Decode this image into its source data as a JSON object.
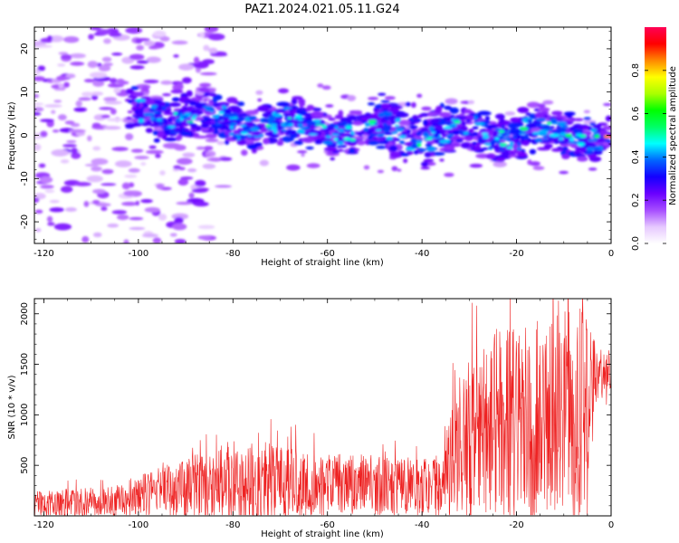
{
  "figure": {
    "title": "PAZ1.2024.021.05.11.G24"
  },
  "chart_data": [
    {
      "type": "heatmap",
      "xlabel": "Height of straight line (km)",
      "ylabel": "Frequency (Hz)",
      "xlim": [
        -122,
        0
      ],
      "ylim": [
        -25,
        25
      ],
      "xticks": [
        -120,
        -100,
        -80,
        -60,
        -40,
        -20,
        0
      ],
      "yticks": [
        -20,
        -10,
        0,
        10,
        20
      ],
      "colorbar": {
        "label": "Normalized spectral amplitude",
        "range": [
          0,
          1
        ],
        "ticks": [
          0.0,
          0.2,
          0.4,
          0.6,
          0.8
        ],
        "colors": [
          "#ffffff",
          "#e6c8ff",
          "#a64dff",
          "#6a00ff",
          "#1400ff",
          "#0066ff",
          "#00ffff",
          "#00ff66",
          "#00ff00",
          "#aaff00",
          "#ffff00",
          "#ff8800",
          "#ff0000",
          "#ff0055"
        ]
      },
      "ridge": [
        {
          "x": -100,
          "y": 5.5
        },
        {
          "x": -80,
          "y": 3.0
        },
        {
          "x": -60,
          "y": 1.5
        },
        {
          "x": -40,
          "y": 0.5
        },
        {
          "x": -20,
          "y": 0.5
        },
        {
          "x": 0,
          "y": 0.0
        }
      ]
    },
    {
      "type": "line",
      "xlabel": "Height of straight line (km)",
      "ylabel": "SNR (10 * v/v)",
      "xlim": [
        -122,
        0
      ],
      "ylim": [
        0,
        2150
      ],
      "xticks": [
        -120,
        -100,
        -80,
        -60,
        -40,
        -20,
        0
      ],
      "yticks": [
        500,
        1000,
        1500,
        2000
      ],
      "color": "#ee2222",
      "envelope": [
        {
          "x": -122,
          "mean": 100,
          "amp": 150
        },
        {
          "x": -105,
          "mean": 150,
          "amp": 150
        },
        {
          "x": -92,
          "mean": 270,
          "amp": 280
        },
        {
          "x": -80,
          "mean": 330,
          "amp": 420
        },
        {
          "x": -65,
          "mean": 320,
          "amp": 330
        },
        {
          "x": -50,
          "mean": 300,
          "amp": 300
        },
        {
          "x": -36,
          "mean": 280,
          "amp": 280
        },
        {
          "x": -32,
          "mean": 700,
          "amp": 750
        },
        {
          "x": -25,
          "mean": 900,
          "amp": 900
        },
        {
          "x": -18,
          "mean": 950,
          "amp": 1000
        },
        {
          "x": -10,
          "mean": 1050,
          "amp": 1000
        },
        {
          "x": -5,
          "mean": 1000,
          "amp": 1100
        },
        {
          "x": -3,
          "mean": 1400,
          "amp": 300
        },
        {
          "x": 0,
          "mean": 1450,
          "amp": 200
        }
      ]
    }
  ]
}
